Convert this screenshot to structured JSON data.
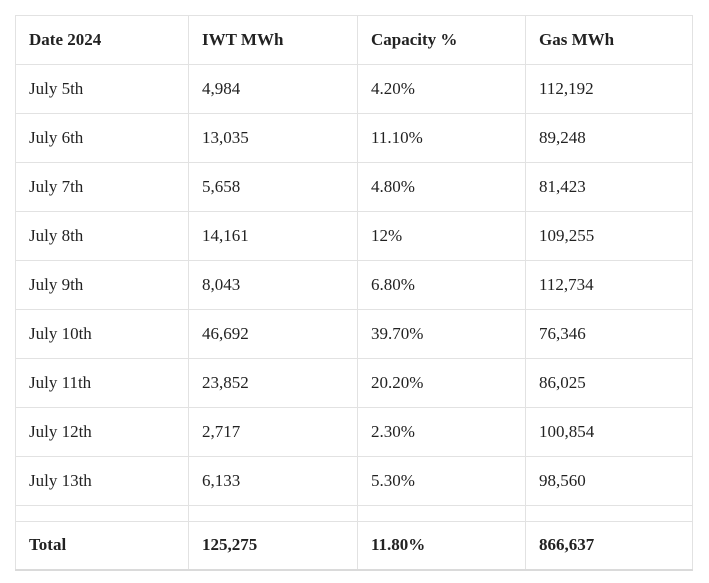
{
  "table": {
    "columns": [
      {
        "label": "Date 2024"
      },
      {
        "label": "IWT MWh"
      },
      {
        "label": "Capacity %"
      },
      {
        "label": "Gas MWh"
      }
    ],
    "rows": [
      [
        "July 5th",
        "4,984",
        "4.20%",
        "112,192"
      ],
      [
        "July 6th",
        "13,035",
        "11.10%",
        "89,248"
      ],
      [
        "July 7th",
        "5,658",
        "4.80%",
        "81,423"
      ],
      [
        "July 8th",
        "14,161",
        "12%",
        "109,255"
      ],
      [
        "July 9th",
        "8,043",
        "6.80%",
        "112,734"
      ],
      [
        "July 10th",
        "46,692",
        "39.70%",
        "76,346"
      ],
      [
        "July 11th",
        "23,852",
        "20.20%",
        "86,025"
      ],
      [
        "July 12th",
        "2,717",
        "2.30%",
        "100,854"
      ],
      [
        "July 13th",
        "6,133",
        "5.30%",
        "98,560"
      ]
    ],
    "total": [
      "Total",
      "125,275",
      "11.80%",
      "866,637"
    ]
  },
  "chart_data": {
    "type": "table",
    "title": "",
    "columns": [
      "Date 2024",
      "IWT MWh",
      "Capacity %",
      "Gas MWh"
    ],
    "categories": [
      "July 5th",
      "July 6th",
      "July 7th",
      "July 8th",
      "July 9th",
      "July 10th",
      "July 11th",
      "July 12th",
      "July 13th"
    ],
    "series": [
      {
        "name": "IWT MWh",
        "values": [
          4984,
          13035,
          5658,
          14161,
          8043,
          46692,
          23852,
          2717,
          6133
        ]
      },
      {
        "name": "Capacity %",
        "values": [
          4.2,
          11.1,
          4.8,
          12,
          6.8,
          39.7,
          20.2,
          2.3,
          5.3
        ]
      },
      {
        "name": "Gas MWh",
        "values": [
          112192,
          89248,
          81423,
          109255,
          112734,
          76346,
          86025,
          100854,
          98560
        ]
      }
    ],
    "totals": {
      "IWT MWh": 125275,
      "Capacity %": 11.8,
      "Gas MWh": 866637
    }
  },
  "colors": {
    "background": "#ffffff",
    "border": "#e2e2e2",
    "text": "#222222"
  }
}
